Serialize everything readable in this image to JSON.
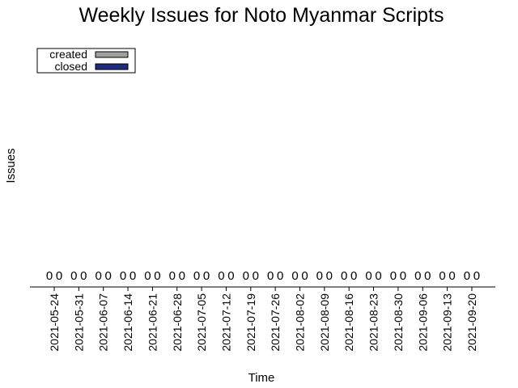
{
  "chart_data": {
    "type": "bar",
    "title": "Weekly Issues for Noto Myanmar Scripts",
    "xlabel": "Time",
    "ylabel": "Issues",
    "categories": [
      "2021-05-24",
      "2021-05-31",
      "2021-06-07",
      "2021-06-14",
      "2021-06-21",
      "2021-06-28",
      "2021-07-05",
      "2021-07-12",
      "2021-07-19",
      "2021-07-26",
      "2021-08-02",
      "2021-08-09",
      "2021-08-16",
      "2021-08-23",
      "2021-08-30",
      "2021-09-06",
      "2021-09-13",
      "2021-09-20"
    ],
    "series": [
      {
        "name": "created",
        "color": "#a0a0a0",
        "values": [
          0,
          0,
          0,
          0,
          0,
          0,
          0,
          0,
          0,
          0,
          0,
          0,
          0,
          0,
          0,
          0,
          0,
          0
        ]
      },
      {
        "name": "closed",
        "color": "#1f2a7a",
        "values": [
          0,
          0,
          0,
          0,
          0,
          0,
          0,
          0,
          0,
          0,
          0,
          0,
          0,
          0,
          0,
          0,
          0,
          0
        ]
      }
    ],
    "legend": "top-left",
    "grid": false
  }
}
